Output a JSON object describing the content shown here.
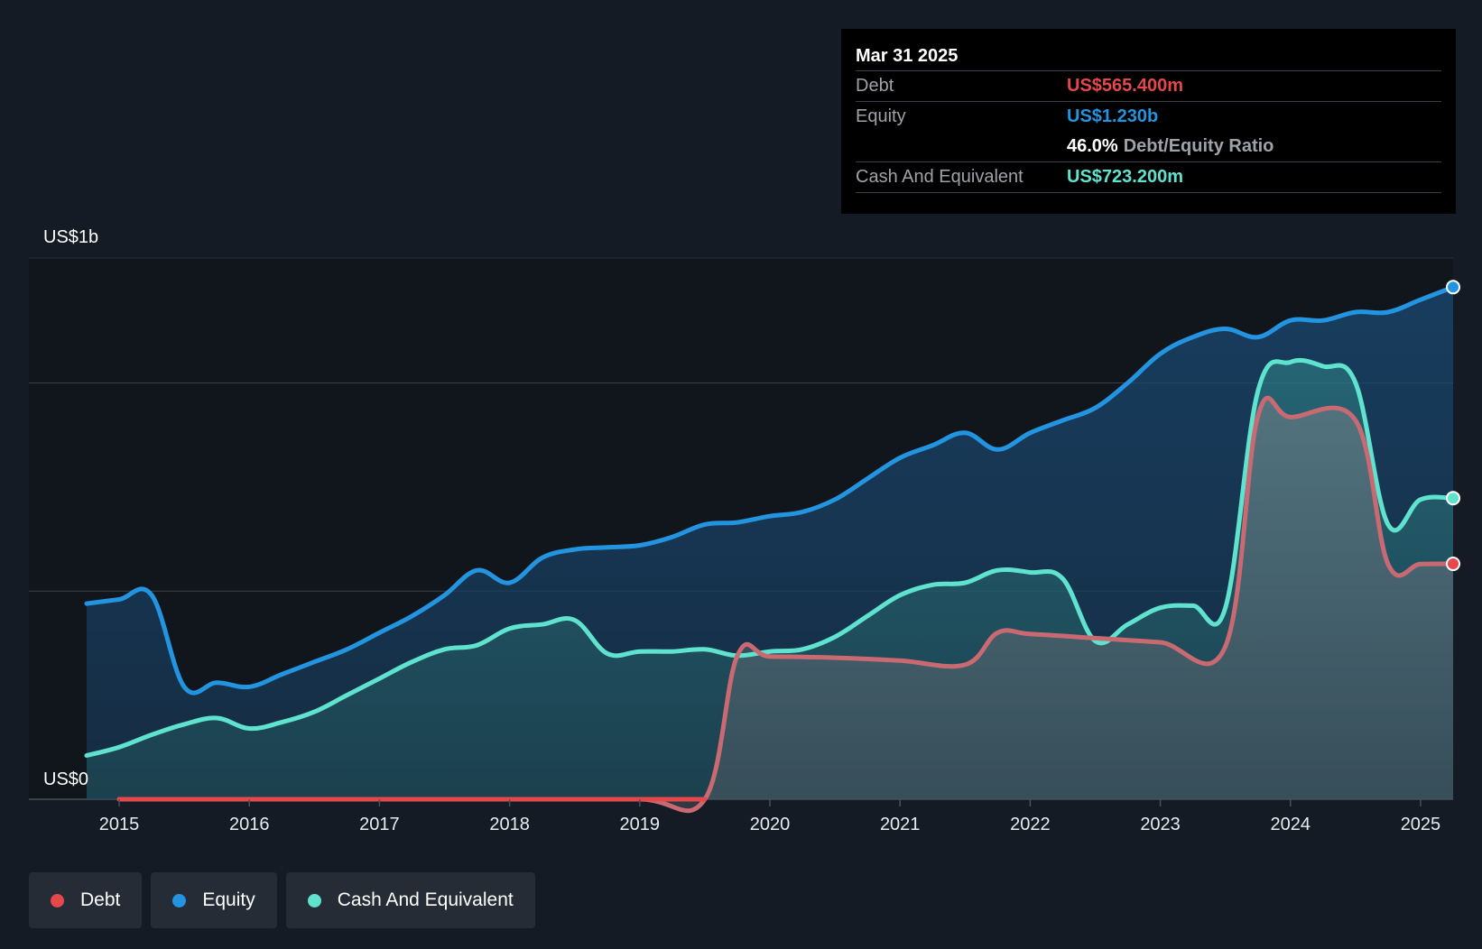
{
  "colors": {
    "background": "#151b24",
    "debt": "#e5474b",
    "equity": "#2394e0",
    "cash": "#5fe3cf",
    "grid": "#3a414b"
  },
  "tooltip": {
    "date": "Mar 31 2025",
    "debt_label": "Debt",
    "debt_value": "US$565.400m",
    "equity_label": "Equity",
    "equity_value": "US$1.230b",
    "ratio_value": "46.0%",
    "ratio_label": "Debt/Equity Ratio",
    "cash_label": "Cash And Equivalent",
    "cash_value": "US$723.200m"
  },
  "legend": [
    {
      "label": "Debt",
      "color": "#e5474b"
    },
    {
      "label": "Equity",
      "color": "#2394e0"
    },
    {
      "label": "Cash And Equivalent",
      "color": "#5fe3cf"
    }
  ],
  "chart_data": {
    "type": "area",
    "title": "",
    "xlabel": "",
    "ylabel": "",
    "y_top_label": "US$1b",
    "y_bottom_label": "US$0",
    "xlim": [
      2014.75,
      2025.25
    ],
    "ylim": [
      0,
      1.3
    ],
    "x_ticks": [
      2015,
      2016,
      2017,
      2018,
      2019,
      2020,
      2021,
      2022,
      2023,
      2024,
      2025
    ],
    "x_tick_labels": [
      "2015",
      "2016",
      "2017",
      "2018",
      "2019",
      "2020",
      "2021",
      "2022",
      "2023",
      "2024",
      "2025"
    ],
    "gridlines": [
      0,
      0.5,
      1.0,
      1.3
    ],
    "series": [
      {
        "name": "Equity",
        "unit": "US$b",
        "points": [
          [
            2014.75,
            0.47
          ],
          [
            2015.0,
            0.48
          ],
          [
            2015.25,
            0.49
          ],
          [
            2015.5,
            0.27
          ],
          [
            2015.75,
            0.28
          ],
          [
            2016.0,
            0.27
          ],
          [
            2016.25,
            0.3
          ],
          [
            2016.5,
            0.33
          ],
          [
            2016.75,
            0.36
          ],
          [
            2017.0,
            0.4
          ],
          [
            2017.25,
            0.44
          ],
          [
            2017.5,
            0.49
          ],
          [
            2017.75,
            0.55
          ],
          [
            2018.0,
            0.52
          ],
          [
            2018.25,
            0.58
          ],
          [
            2018.5,
            0.6
          ],
          [
            2018.75,
            0.605
          ],
          [
            2019.0,
            0.61
          ],
          [
            2019.25,
            0.63
          ],
          [
            2019.5,
            0.66
          ],
          [
            2019.75,
            0.665
          ],
          [
            2020.0,
            0.68
          ],
          [
            2020.25,
            0.69
          ],
          [
            2020.5,
            0.72
          ],
          [
            2020.75,
            0.77
          ],
          [
            2021.0,
            0.82
          ],
          [
            2021.25,
            0.85
          ],
          [
            2021.5,
            0.88
          ],
          [
            2021.75,
            0.84
          ],
          [
            2022.0,
            0.88
          ],
          [
            2022.25,
            0.91
          ],
          [
            2022.5,
            0.94
          ],
          [
            2022.75,
            1.0
          ],
          [
            2023.0,
            1.07
          ],
          [
            2023.25,
            1.11
          ],
          [
            2023.5,
            1.13
          ],
          [
            2023.75,
            1.11
          ],
          [
            2024.0,
            1.15
          ],
          [
            2024.25,
            1.15
          ],
          [
            2024.5,
            1.17
          ],
          [
            2024.75,
            1.17
          ],
          [
            2025.0,
            1.2
          ],
          [
            2025.25,
            1.23
          ]
        ]
      },
      {
        "name": "Cash And Equivalent",
        "unit": "US$b",
        "points": [
          [
            2014.75,
            0.105
          ],
          [
            2015.0,
            0.125
          ],
          [
            2015.25,
            0.155
          ],
          [
            2015.5,
            0.18
          ],
          [
            2015.75,
            0.195
          ],
          [
            2016.0,
            0.17
          ],
          [
            2016.25,
            0.185
          ],
          [
            2016.5,
            0.21
          ],
          [
            2016.75,
            0.25
          ],
          [
            2017.0,
            0.29
          ],
          [
            2017.25,
            0.33
          ],
          [
            2017.5,
            0.36
          ],
          [
            2017.75,
            0.37
          ],
          [
            2018.0,
            0.41
          ],
          [
            2018.25,
            0.42
          ],
          [
            2018.5,
            0.43
          ],
          [
            2018.75,
            0.35
          ],
          [
            2019.0,
            0.355
          ],
          [
            2019.25,
            0.355
          ],
          [
            2019.5,
            0.36
          ],
          [
            2019.75,
            0.345
          ],
          [
            2020.0,
            0.355
          ],
          [
            2020.25,
            0.36
          ],
          [
            2020.5,
            0.39
          ],
          [
            2020.75,
            0.44
          ],
          [
            2021.0,
            0.49
          ],
          [
            2021.25,
            0.515
          ],
          [
            2021.5,
            0.52
          ],
          [
            2021.75,
            0.55
          ],
          [
            2022.0,
            0.545
          ],
          [
            2022.25,
            0.53
          ],
          [
            2022.5,
            0.38
          ],
          [
            2022.75,
            0.42
          ],
          [
            2023.0,
            0.46
          ],
          [
            2023.25,
            0.465
          ],
          [
            2023.5,
            0.46
          ],
          [
            2023.75,
            0.98
          ],
          [
            2024.0,
            1.05
          ],
          [
            2024.25,
            1.04
          ],
          [
            2024.5,
            1.0
          ],
          [
            2024.75,
            0.66
          ],
          [
            2025.0,
            0.72
          ],
          [
            2025.25,
            0.7232
          ]
        ]
      },
      {
        "name": "Debt",
        "unit": "US$b",
        "points": [
          [
            2015.0,
            0.0
          ],
          [
            2016.0,
            0.0
          ],
          [
            2017.0,
            0.0
          ],
          [
            2018.0,
            0.0
          ],
          [
            2019.0,
            0.0
          ],
          [
            2019.5,
            0.0
          ],
          [
            2019.75,
            0.345
          ],
          [
            2020.0,
            0.343
          ],
          [
            2020.5,
            0.34
          ],
          [
            2021.0,
            0.333
          ],
          [
            2021.5,
            0.323
          ],
          [
            2021.75,
            0.4
          ],
          [
            2022.0,
            0.397
          ],
          [
            2022.5,
            0.387
          ],
          [
            2023.0,
            0.377
          ],
          [
            2023.5,
            0.367
          ],
          [
            2023.75,
            0.92
          ],
          [
            2024.0,
            0.918
          ],
          [
            2024.5,
            0.91
          ],
          [
            2024.75,
            0.565
          ],
          [
            2025.0,
            0.565
          ],
          [
            2025.25,
            0.5654
          ]
        ]
      }
    ]
  }
}
